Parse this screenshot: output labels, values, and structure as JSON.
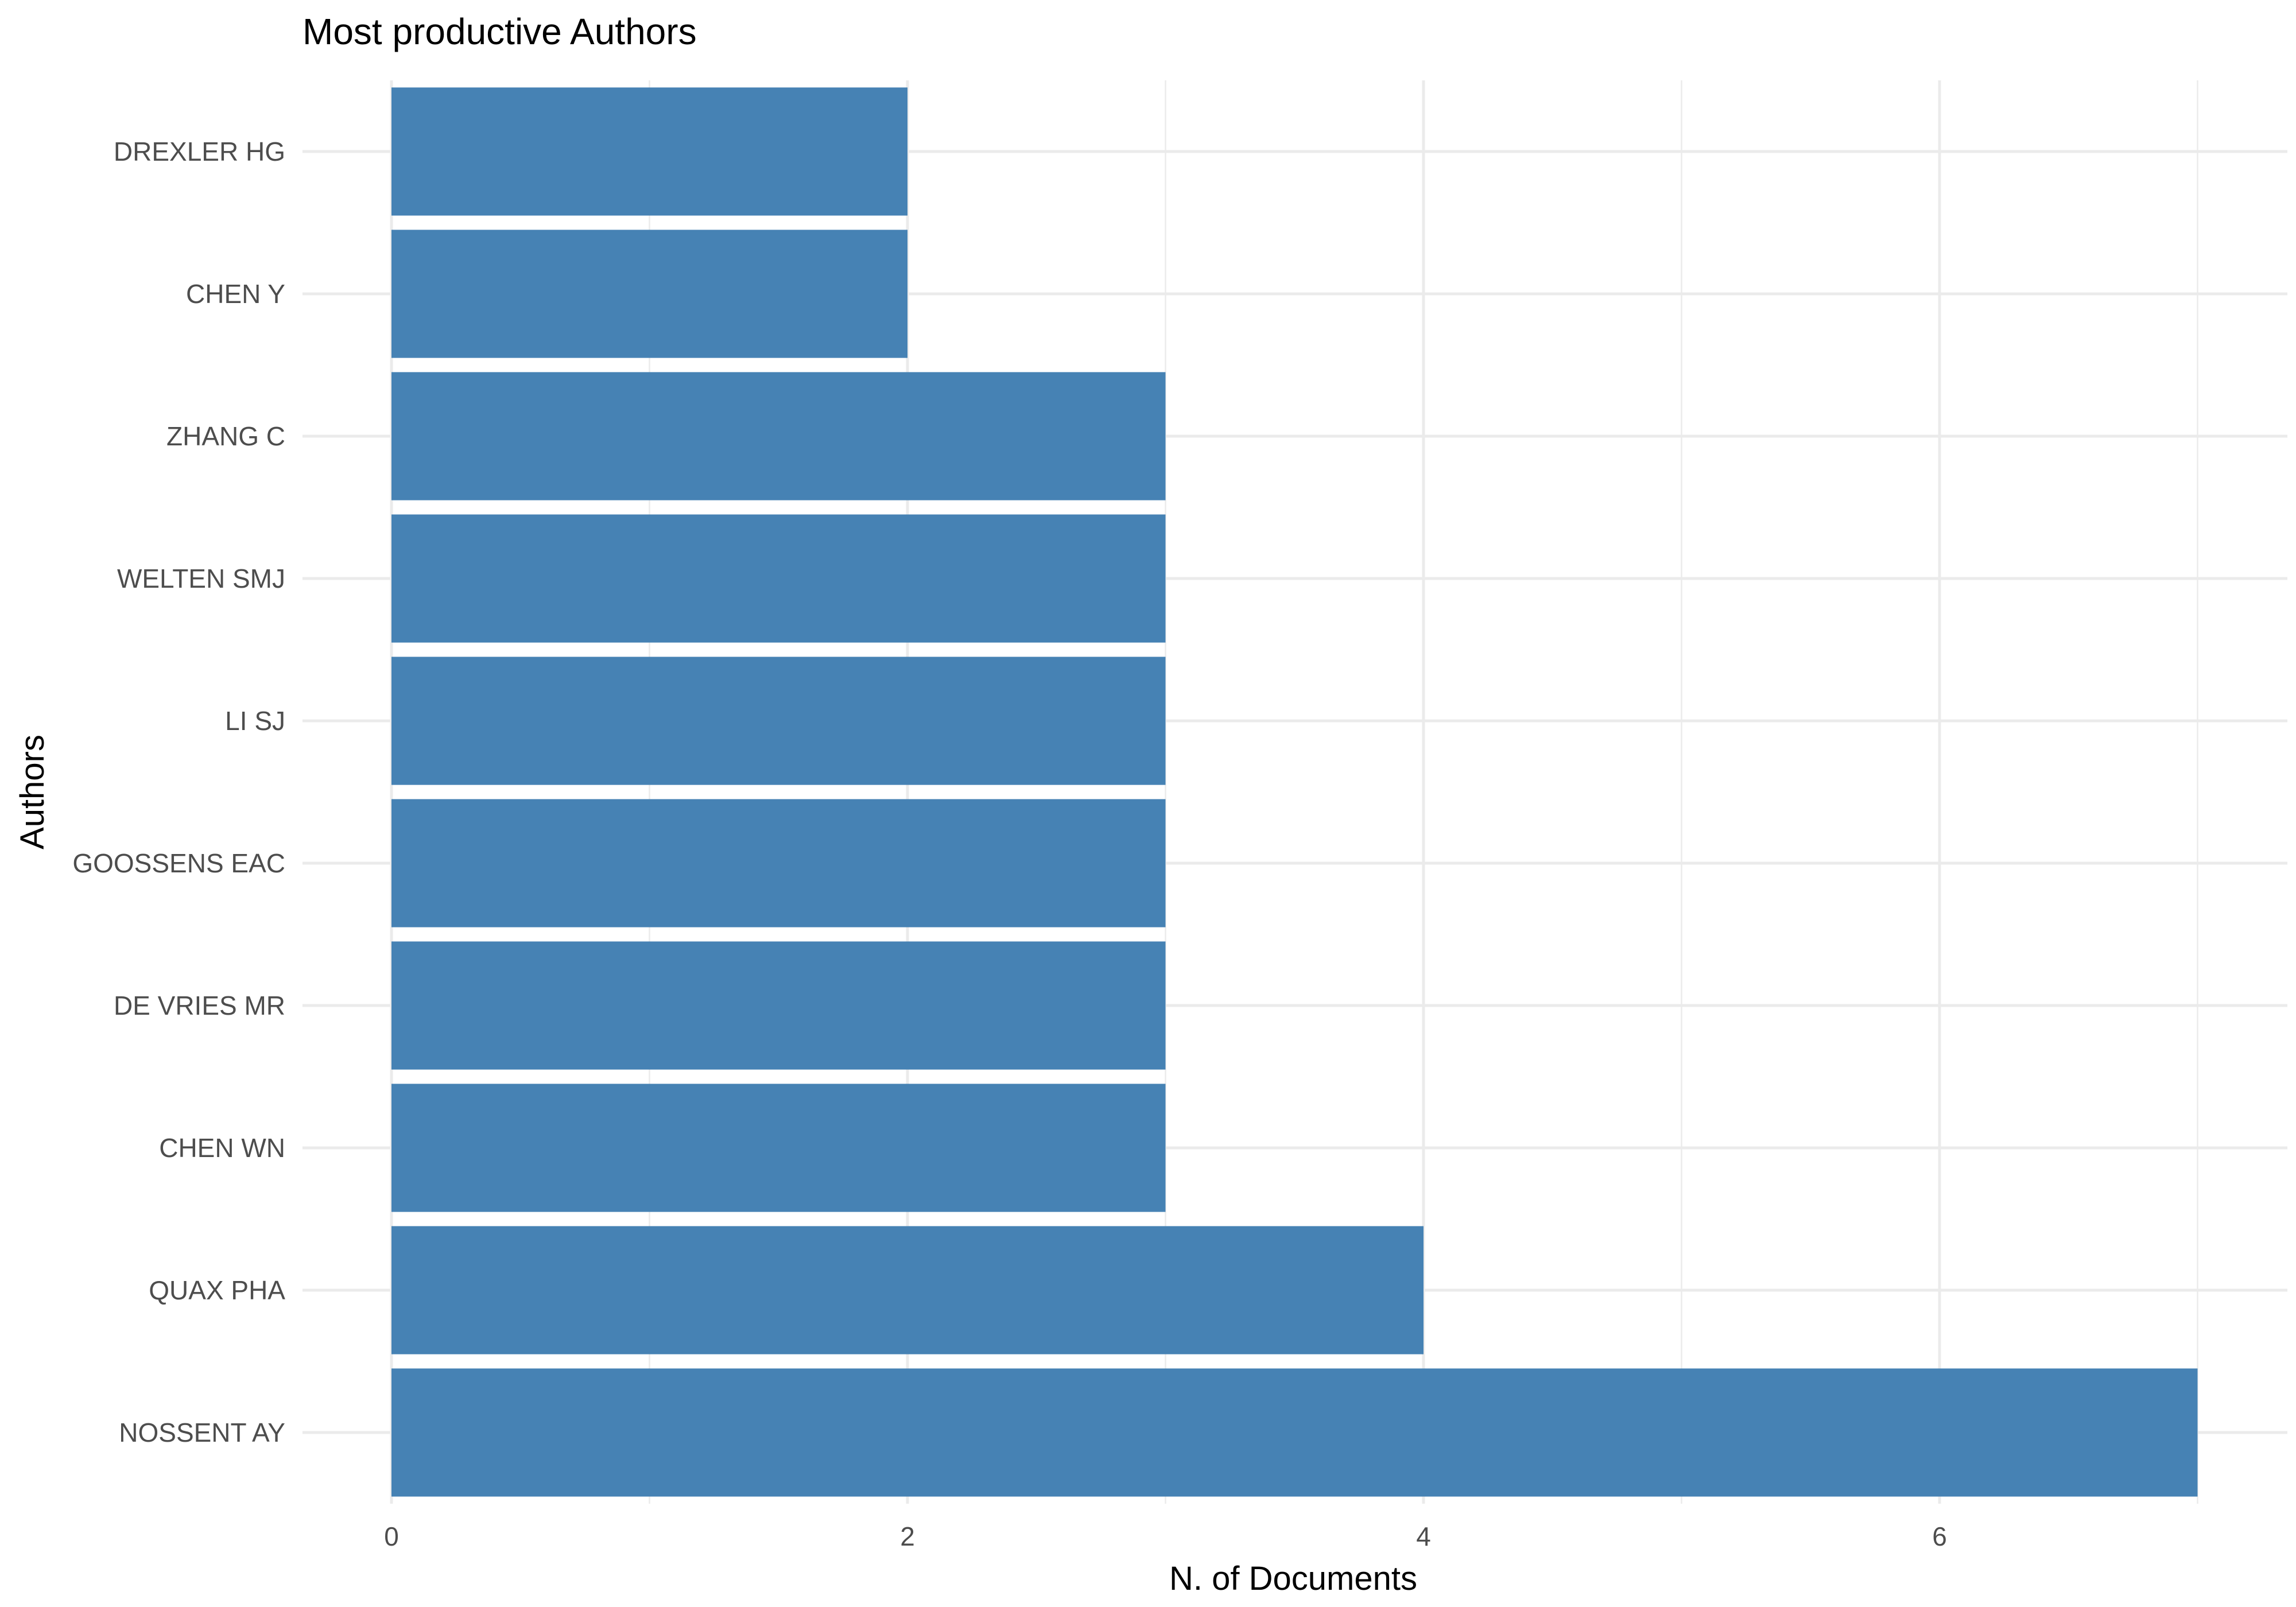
{
  "chart_data": {
    "type": "bar",
    "orientation": "horizontal",
    "title": "Most productive Authors",
    "xlabel": "N. of Documents",
    "ylabel": "Authors",
    "categories": [
      "NOSSENT AY",
      "QUAX PHA",
      "CHEN WN",
      "DE VRIES MR",
      "GOOSSENS EAC",
      "LI SJ",
      "WELTEN SMJ",
      "ZHANG C",
      "CHEN Y",
      "DREXLER HG"
    ],
    "values": [
      7,
      4,
      3,
      3,
      3,
      3,
      3,
      3,
      2,
      2
    ],
    "xlim": [
      0,
      7.35
    ],
    "xticks": [
      0,
      2,
      4,
      6
    ],
    "grid": true,
    "bar_color": "#4682B4",
    "grid_color": "#EBEBEB",
    "background": "#FFFFFF"
  }
}
